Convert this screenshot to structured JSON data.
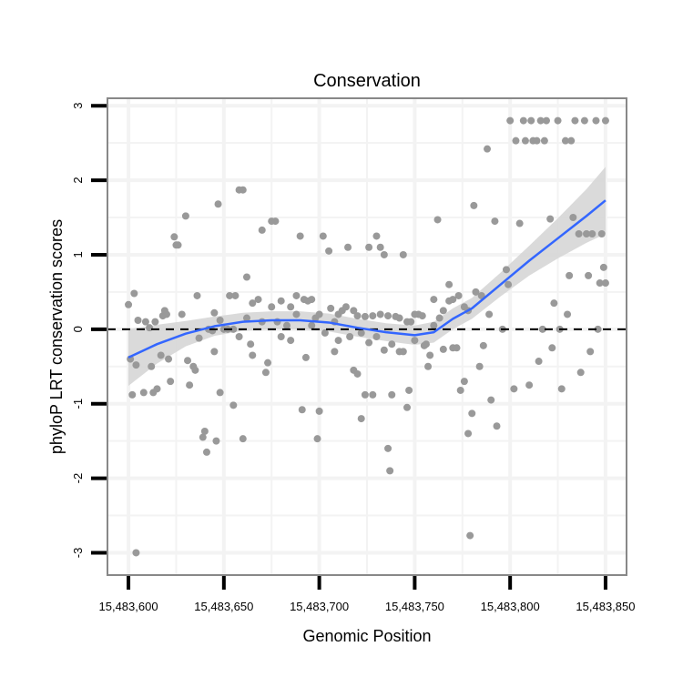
{
  "chart_data": {
    "type": "scatter",
    "title": "Conservation",
    "xlabel": "Genomic Position",
    "ylabel": "phyloP LRT conservation scores",
    "x_base": 15483600,
    "xlim": [
      15483589,
      15483861
    ],
    "ylim": [
      -3.3,
      3.1
    ],
    "x_ticks": [
      15483600,
      15483650,
      15483700,
      15483750,
      15483800,
      15483850
    ],
    "x_tick_labels": [
      "15,483,600",
      "15,483,650",
      "15,483,700",
      "15,483,750",
      "15,483,800",
      "15,483,850"
    ],
    "y_ticks": [
      -3,
      -2,
      -1,
      0,
      1,
      2,
      3
    ],
    "y_tick_labels": [
      "-3",
      "-2",
      "-1",
      "0",
      "1",
      "2",
      "3"
    ],
    "reference_line": {
      "y": 0,
      "style": "dashed"
    },
    "grid": true,
    "colors": {
      "points": "#999999",
      "smooth": "#3366FF",
      "band": "#d3d3d3",
      "panel_border": "#888888",
      "grid": "#f3f3f3"
    },
    "points_x_offset_y": [
      [
        0,
        0.33
      ],
      [
        3,
        0.48
      ],
      [
        1,
        -0.4
      ],
      [
        2,
        -0.88
      ],
      [
        5,
        0.12
      ],
      [
        4,
        -0.48
      ],
      [
        8,
        -0.85
      ],
      [
        9,
        0.1
      ],
      [
        11,
        0.02
      ],
      [
        12,
        -0.5
      ],
      [
        13,
        -0.85
      ],
      [
        14,
        0.1
      ],
      [
        15,
        -0.8
      ],
      [
        17,
        -0.35
      ],
      [
        18,
        0.18
      ],
      [
        19,
        0.25
      ],
      [
        20,
        0.2
      ],
      [
        21,
        -0.4
      ],
      [
        22,
        -0.7
      ],
      [
        24,
        1.24
      ],
      [
        25,
        1.13
      ],
      [
        26,
        1.13
      ],
      [
        28,
        0.2
      ],
      [
        30,
        1.52
      ],
      [
        31,
        -0.42
      ],
      [
        32,
        -0.75
      ],
      [
        34,
        -0.5
      ],
      [
        35,
        -0.55
      ],
      [
        36,
        0.45
      ],
      [
        37,
        -0.12
      ],
      [
        39,
        -1.45
      ],
      [
        40,
        -1.37
      ],
      [
        41,
        -1.65
      ],
      [
        42,
        0.0
      ],
      [
        44,
        -0.02
      ],
      [
        45,
        -0.3
      ],
      [
        46,
        -1.5
      ],
      [
        47,
        1.68
      ],
      [
        48,
        -0.85
      ],
      [
        50,
        0.0
      ],
      [
        4,
        -3.0
      ],
      [
        53,
        0.45
      ],
      [
        55,
        -1.02
      ],
      [
        56,
        0.45
      ],
      [
        58,
        1.87
      ],
      [
        60,
        1.87
      ],
      [
        60,
        -1.47
      ],
      [
        62,
        0.7
      ],
      [
        64,
        -0.2
      ],
      [
        65,
        -0.35
      ],
      [
        70,
        1.33
      ],
      [
        72,
        -0.58
      ],
      [
        73,
        -0.45
      ],
      [
        75,
        1.45
      ],
      [
        77,
        1.45
      ],
      [
        80,
        0.38
      ],
      [
        85,
        0.3
      ],
      [
        88,
        0.45
      ],
      [
        90,
        1.25
      ],
      [
        91,
        -1.08
      ],
      [
        93,
        -0.38
      ],
      [
        96,
        0.4
      ],
      [
        99,
        -1.47
      ],
      [
        100,
        -1.1
      ],
      [
        102,
        1.25
      ],
      [
        105,
        1.05
      ],
      [
        108,
        -0.3
      ],
      [
        110,
        0.2
      ],
      [
        115,
        1.1
      ],
      [
        118,
        -0.55
      ],
      [
        120,
        -0.6
      ],
      [
        122,
        -1.2
      ],
      [
        124,
        -0.88
      ],
      [
        126,
        1.1
      ],
      [
        128,
        -0.88
      ],
      [
        130,
        1.25
      ],
      [
        132,
        1.1
      ],
      [
        134,
        1.0
      ],
      [
        136,
        -1.6
      ],
      [
        137,
        -1.9
      ],
      [
        138,
        -0.88
      ],
      [
        142,
        -0.3
      ],
      [
        144,
        1.0
      ],
      [
        146,
        -1.05
      ],
      [
        147,
        -0.82
      ],
      [
        45,
        0.22
      ],
      [
        48,
        0.12
      ],
      [
        52,
        0.0
      ],
      [
        55,
        0.0
      ],
      [
        58,
        -0.1
      ],
      [
        62,
        0.15
      ],
      [
        65,
        0.35
      ],
      [
        68,
        0.4
      ],
      [
        70,
        0.1
      ],
      [
        75,
        0.3
      ],
      [
        78,
        0.1
      ],
      [
        80,
        -0.1
      ],
      [
        83,
        0.05
      ],
      [
        85,
        -0.15
      ],
      [
        88,
        0.2
      ],
      [
        92,
        0.4
      ],
      [
        94,
        0.38
      ],
      [
        96,
        0.05
      ],
      [
        98,
        0.15
      ],
      [
        100,
        0.2
      ],
      [
        103,
        -0.05
      ],
      [
        106,
        0.28
      ],
      [
        108,
        0.1
      ],
      [
        110,
        -0.15
      ],
      [
        112,
        0.25
      ],
      [
        114,
        0.3
      ],
      [
        116,
        -0.1
      ],
      [
        118,
        0.25
      ],
      [
        120,
        0.18
      ],
      [
        122,
        -0.05
      ],
      [
        124,
        0.17
      ],
      [
        126,
        -0.18
      ],
      [
        128,
        0.18
      ],
      [
        130,
        -0.1
      ],
      [
        132,
        0.2
      ],
      [
        134,
        -0.28
      ],
      [
        136,
        0.18
      ],
      [
        138,
        -0.2
      ],
      [
        140,
        0.17
      ],
      [
        142,
        0.15
      ],
      [
        144,
        -0.3
      ],
      [
        146,
        0.1
      ],
      [
        148,
        0.1
      ],
      [
        150,
        -0.15
      ],
      [
        152,
        0.2
      ],
      [
        154,
        0.18
      ],
      [
        156,
        -0.2
      ],
      [
        158,
        -0.35
      ],
      [
        160,
        0.05
      ],
      [
        163,
        0.15
      ],
      [
        165,
        0.25
      ],
      [
        168,
        0.38
      ],
      [
        170,
        -0.25
      ],
      [
        173,
        0.45
      ],
      [
        176,
        0.3
      ],
      [
        178,
        0.25
      ],
      [
        182,
        0.5
      ],
      [
        185,
        0.45
      ],
      [
        150,
        0.2
      ],
      [
        155,
        -0.22
      ],
      [
        157,
        -0.5
      ],
      [
        160,
        0.4
      ],
      [
        162,
        1.47
      ],
      [
        165,
        -0.27
      ],
      [
        168,
        0.6
      ],
      [
        170,
        0.4
      ],
      [
        172,
        -0.25
      ],
      [
        174,
        -0.82
      ],
      [
        176,
        -0.7
      ],
      [
        178,
        -1.4
      ],
      [
        179,
        -2.77
      ],
      [
        180,
        -1.13
      ],
      [
        181,
        1.66
      ],
      [
        184,
        -0.5
      ],
      [
        186,
        -0.22
      ],
      [
        188,
        2.42
      ],
      [
        189,
        0.2
      ],
      [
        190,
        -0.95
      ],
      [
        192,
        1.45
      ],
      [
        193,
        -1.3
      ],
      [
        196,
        0.0
      ],
      [
        198,
        0.8
      ],
      [
        199,
        0.6
      ],
      [
        200,
        2.8
      ],
      [
        202,
        -0.8
      ],
      [
        203,
        2.53
      ],
      [
        205,
        1.42
      ],
      [
        207,
        2.8
      ],
      [
        208,
        2.53
      ],
      [
        210,
        -0.75
      ],
      [
        211,
        2.8
      ],
      [
        212,
        2.53
      ],
      [
        214,
        2.53
      ],
      [
        215,
        -0.43
      ],
      [
        216,
        2.8
      ],
      [
        217,
        0.0
      ],
      [
        218,
        2.53
      ],
      [
        219,
        2.8
      ],
      [
        221,
        1.48
      ],
      [
        222,
        -0.25
      ],
      [
        223,
        0.35
      ],
      [
        225,
        2.8
      ],
      [
        226,
        0.0
      ],
      [
        227,
        -0.8
      ],
      [
        229,
        2.53
      ],
      [
        230,
        0.2
      ],
      [
        231,
        0.72
      ],
      [
        232,
        2.53
      ],
      [
        233,
        1.5
      ],
      [
        234,
        2.8
      ],
      [
        236,
        1.28
      ],
      [
        237,
        -0.58
      ],
      [
        239,
        2.8
      ],
      [
        240,
        1.28
      ],
      [
        241,
        0.72
      ],
      [
        242,
        -0.3
      ],
      [
        243,
        1.28
      ],
      [
        245,
        2.8
      ],
      [
        246,
        0.0
      ],
      [
        247,
        0.62
      ],
      [
        249,
        0.83
      ],
      [
        250,
        2.8
      ],
      [
        250,
        0.62
      ],
      [
        248,
        1.28
      ]
    ],
    "smooth": {
      "x_offset": [
        0,
        15,
        30,
        45,
        60,
        75,
        90,
        105,
        120,
        135,
        150,
        160,
        170,
        180,
        195,
        210,
        225,
        240,
        250
      ],
      "y": [
        -0.38,
        -0.2,
        -0.06,
        0.04,
        0.1,
        0.12,
        0.12,
        0.09,
        0.02,
        -0.04,
        -0.08,
        -0.04,
        0.14,
        0.28,
        0.6,
        0.92,
        1.22,
        1.52,
        1.73
      ],
      "se_halfwidth": [
        0.38,
        0.26,
        0.17,
        0.13,
        0.12,
        0.12,
        0.12,
        0.12,
        0.12,
        0.12,
        0.13,
        0.14,
        0.14,
        0.14,
        0.16,
        0.2,
        0.27,
        0.36,
        0.45
      ]
    }
  }
}
